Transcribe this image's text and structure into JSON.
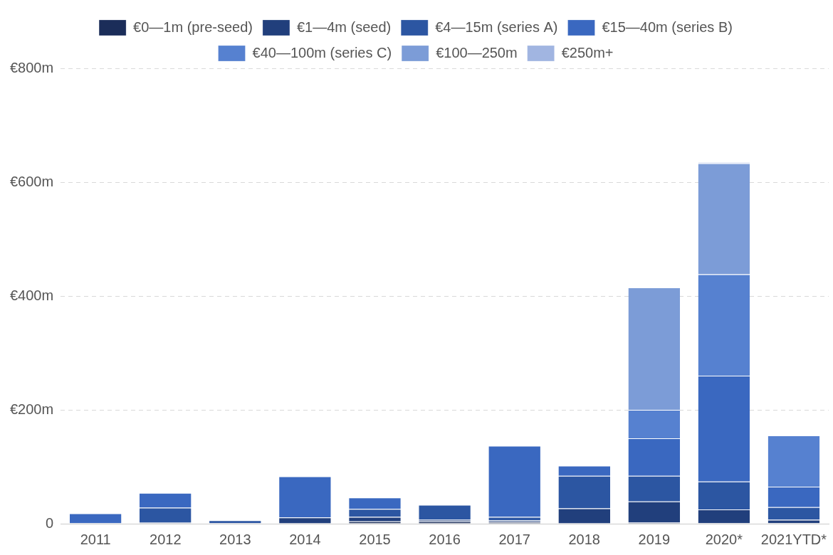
{
  "chart_data": {
    "type": "bar",
    "stacked": true,
    "grid": true,
    "legend": "top",
    "categories": [
      "2011",
      "2012",
      "2013",
      "2014",
      "2015",
      "2016",
      "2017",
      "2018",
      "2019",
      "2020*",
      "2021YTD*"
    ],
    "ylim": [
      0,
      800
    ],
    "yticks": [
      0,
      {
        "value": 200,
        "label": "€200m"
      },
      {
        "value": 400,
        "label": "€400m"
      },
      {
        "value": 600,
        "label": "€600m"
      },
      {
        "value": 800,
        "label": "€800m"
      }
    ],
    "series": [
      {
        "name": "€0—1m (pre-seed)",
        "color": "#1b2d59",
        "values": [
          0,
          1,
          1,
          0,
          4,
          4,
          3,
          0,
          2,
          1,
          1
        ]
      },
      {
        "name": "€1—4m (seed)",
        "color": "#213f7c",
        "values": [
          1,
          1,
          0,
          11,
          8,
          3,
          3,
          27,
          37,
          24,
          6
        ]
      },
      {
        "name": "€4—15m (series A)",
        "color": "#2c56a2",
        "values": [
          0,
          26,
          5,
          0,
          14,
          26,
          6,
          57,
          45,
          49,
          22
        ]
      },
      {
        "name": "€15—40m (series B)",
        "color": "#3a68c0",
        "values": [
          17,
          26,
          0,
          72,
          20,
          0,
          125,
          18,
          66,
          186,
          36
        ]
      },
      {
        "name": "€40—100m (series C)",
        "color": "#5681d0",
        "values": [
          0,
          0,
          0,
          0,
          0,
          0,
          0,
          0,
          50,
          178,
          90
        ]
      },
      {
        "name": "€100—250m",
        "color": "#7c9cd7",
        "values": [
          0,
          0,
          0,
          0,
          0,
          0,
          0,
          0,
          215,
          195,
          0
        ]
      },
      {
        "name": "€250m+",
        "color": "#a1b5e1",
        "values": [
          0,
          0,
          0,
          0,
          0,
          0,
          0,
          0,
          0,
          2,
          0
        ]
      }
    ]
  }
}
